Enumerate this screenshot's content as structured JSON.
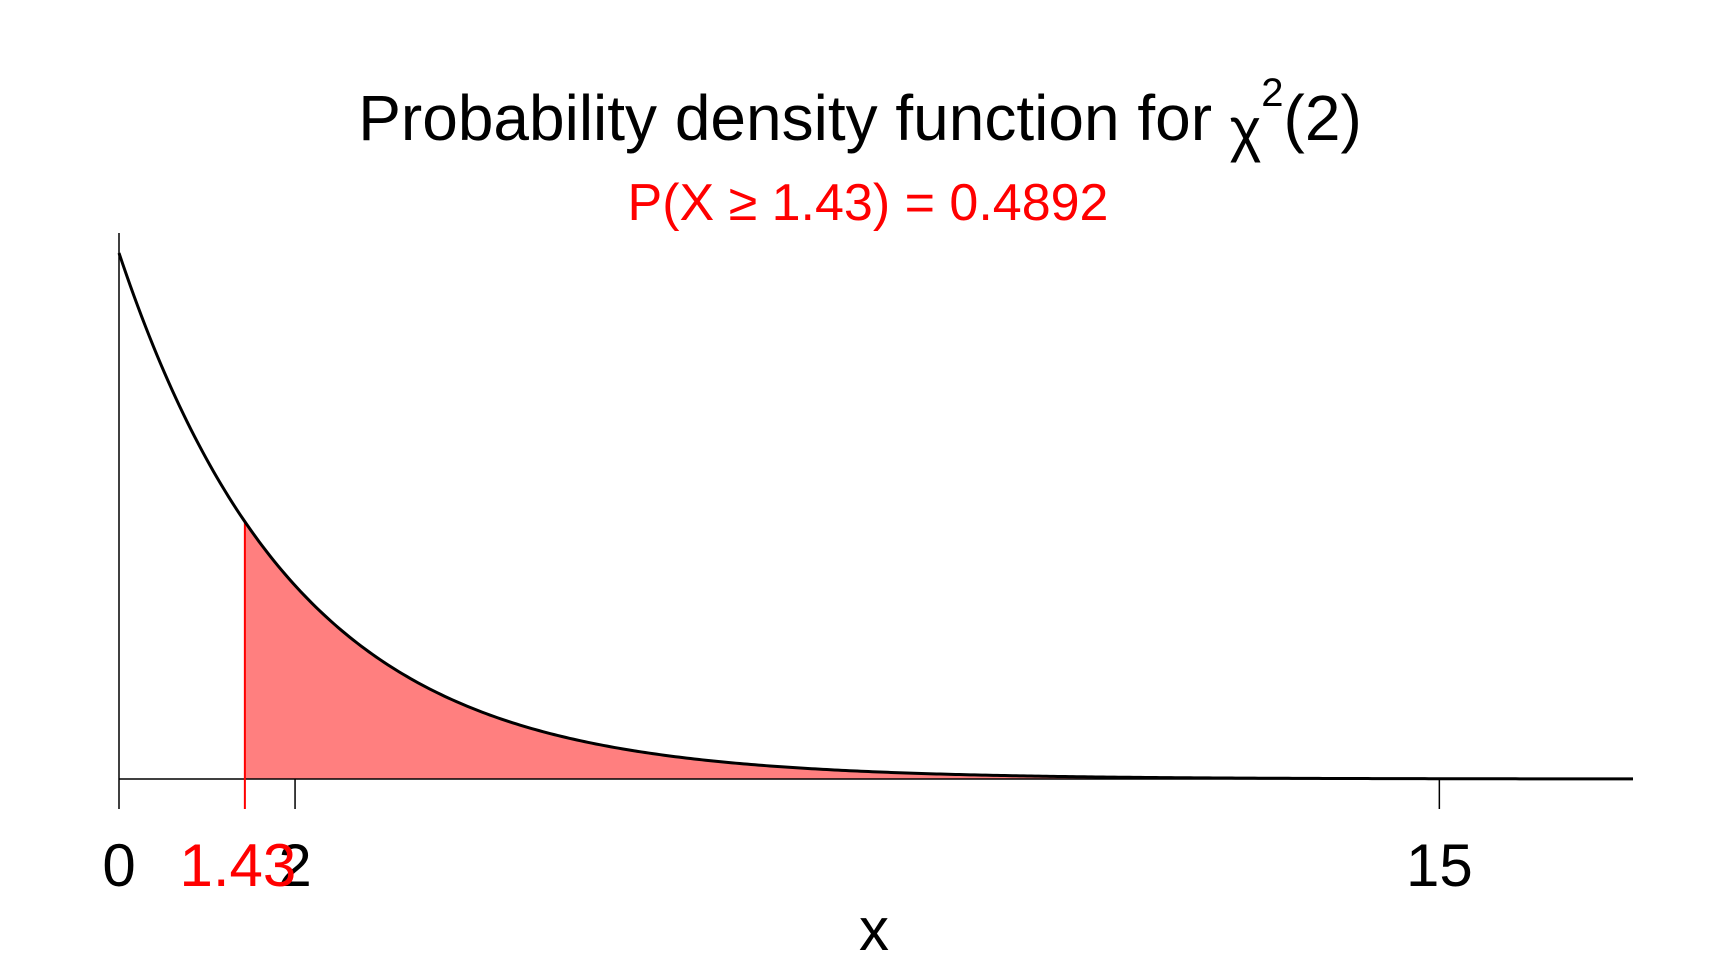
{
  "chart_data": {
    "type": "area",
    "title": "Probability density function for ",
    "title_symbol": "χ",
    "title_superscript": "2",
    "title_suffix": "(2)",
    "subtitle": "P(X ≥ 1.43) = 0.4892",
    "xlabel": "x",
    "ylabel": "",
    "xlim": [
      0,
      17.2
    ],
    "ylim": [
      0,
      0.5
    ],
    "x_ticks": [
      {
        "value": 0,
        "label": "0"
      },
      {
        "value": 2,
        "label": "2"
      },
      {
        "value": 15,
        "label": "15"
      }
    ],
    "highlight_tick": {
      "value": 1.43,
      "label": "1.43"
    },
    "series": [
      {
        "x": [
          0,
          0.5,
          1,
          1.43,
          2,
          3,
          4,
          5,
          6,
          7,
          8,
          9,
          10,
          11,
          12,
          13,
          14,
          15,
          16,
          17.2
        ],
        "values": [
          0.5,
          0.3894,
          0.3033,
          0.2446,
          0.1839,
          0.1116,
          0.0677,
          0.041,
          0.0249,
          0.0151,
          0.0092,
          0.0056,
          0.0034,
          0.002,
          0.0012,
          0.0008,
          0.0005,
          0.0003,
          0.0002,
          0.0001
        ]
      }
    ],
    "shaded_region": {
      "from": 1.43,
      "to": 17.2,
      "probability": 0.4892
    },
    "grid": false,
    "colors": {
      "curve": "#000000",
      "shade": "#ff7f7f",
      "highlight": "#ff0000",
      "text": "#000000"
    }
  }
}
